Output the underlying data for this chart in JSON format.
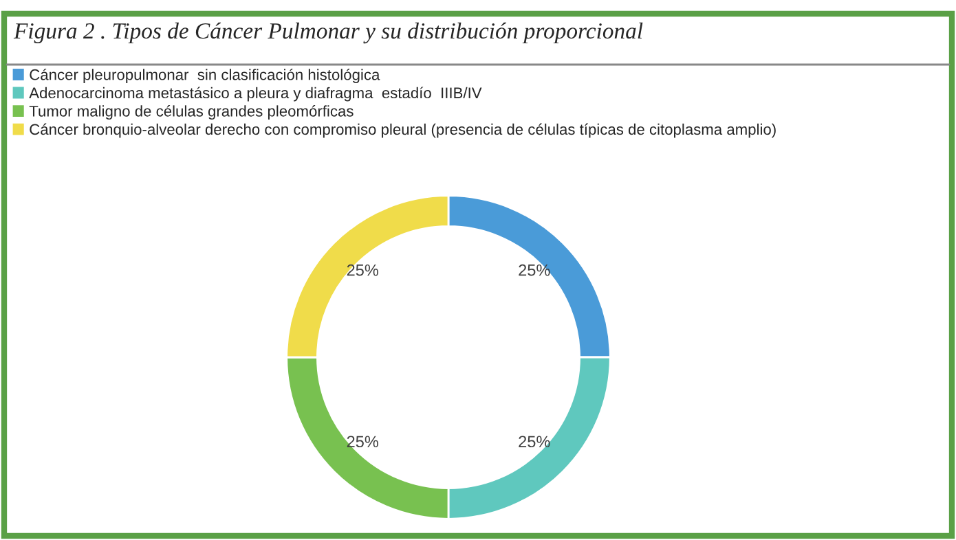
{
  "chart_data": {
    "type": "donut",
    "title": "Figura 2 . Tipos de Cáncer Pulmonar y su distribución proporcional",
    "categories": [
      "Cáncer pleuropulmonar  sin clasificación histológica",
      "Adenocarcinoma metastásico a pleura y diafragma  estadío  IIIB/IV",
      "Tumor maligno de células grandes pleomórficas",
      "Cáncer bronquio-alveolar derecho con compromiso pleural (presencia de células típicas de citoplasma amplio)"
    ],
    "values": [
      25,
      25,
      25,
      25
    ],
    "colors": [
      "#4a9bd8",
      "#5fc8be",
      "#78c150",
      "#f0dc4a"
    ],
    "value_labels": [
      "25%",
      "25%",
      "25%",
      "25%"
    ],
    "legend": "top left"
  }
}
